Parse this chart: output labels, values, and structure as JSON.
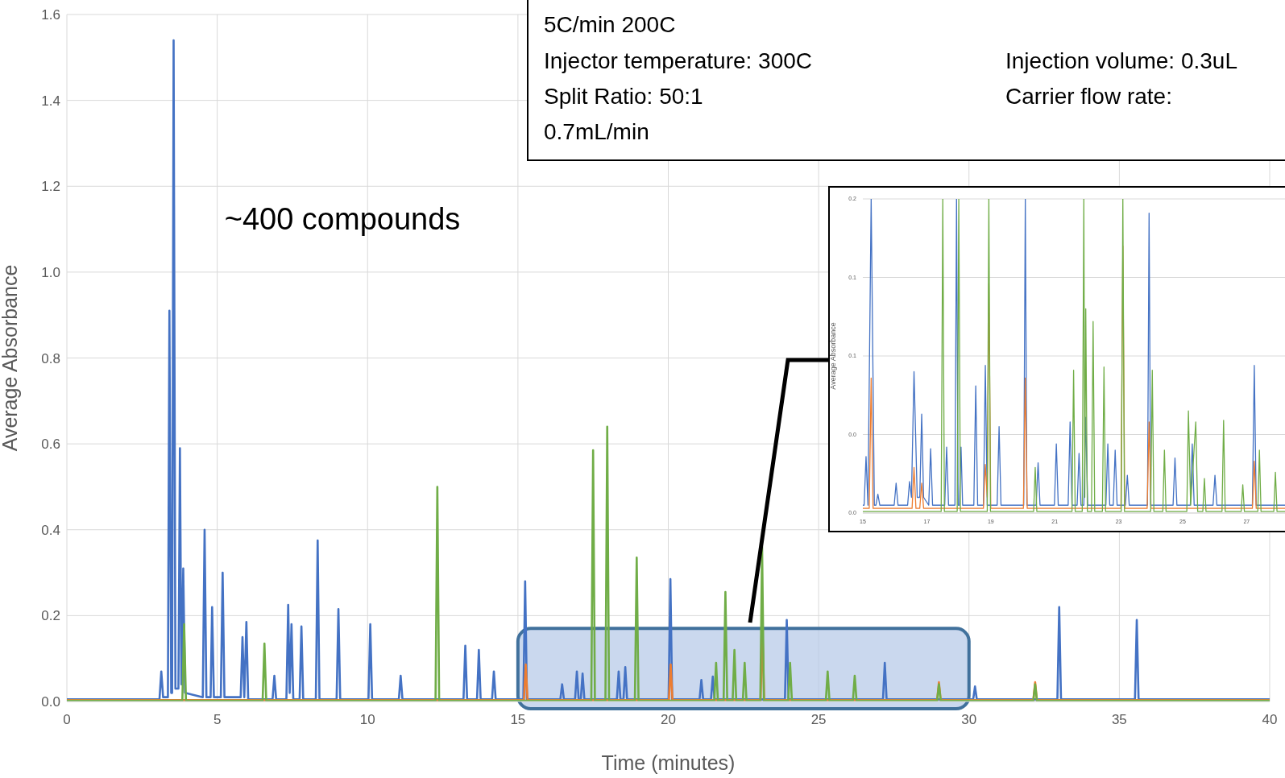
{
  "chart_data": [
    {
      "type": "line",
      "xlabel": "Time (minutes)",
      "ylabel": "Average Absorbance",
      "xlim": [
        0,
        40
      ],
      "ylim": [
        0,
        1.6
      ],
      "xticks": [
        0,
        5,
        10,
        15,
        20,
        25,
        30,
        35,
        40
      ],
      "yticks": [
        {
          "value": 0,
          "label": "0.0"
        },
        0.2,
        0.4,
        0.6,
        0.8,
        {
          "value": 1,
          "label": "1.0"
        },
        1.2,
        1.4,
        1.6
      ],
      "grid": true,
      "annotations": [
        "~400 compounds",
        "5C/min 200C",
        "Injector temperature: 300C",
        "Injection volume: 0.3uL",
        "Split Ratio: 50:1",
        "Carrier flow rate:",
        "0.7mL/min"
      ],
      "bands": [
        {
          "axis": "x",
          "from": 15,
          "to": 30,
          "color": "#b4c7e7"
        }
      ],
      "series": [
        {
          "color": "#4472c4",
          "x": [
            0,
            3.08,
            3.14,
            3.2,
            3.36,
            3.41,
            3.47,
            3.5,
            3.55,
            3.61,
            3.71,
            3.76,
            3.81,
            3.87,
            3.93,
            4.52,
            4.58,
            4.64,
            4.78,
            4.83,
            4.89,
            5.12,
            5.18,
            5.24,
            5.78,
            5.84,
            5.9,
            5.97,
            6.03,
            6.84,
            6.9,
            6.96,
            7.3,
            7.36,
            7.41,
            7.47,
            7.53,
            7.74,
            7.8,
            7.86,
            8.28,
            8.34,
            8.4,
            8.97,
            9.03,
            9.09,
            10.03,
            10.09,
            10.15,
            11.04,
            11.1,
            11.16,
            13.19,
            13.25,
            13.31,
            13.64,
            13.7,
            13.76,
            14.14,
            14.2,
            14.26,
            15.18,
            15.24,
            15.3,
            16.41,
            16.47,
            16.53,
            16.9,
            16.96,
            17.02,
            17.09,
            17.15,
            17.21,
            18.29,
            18.35,
            18.41,
            18.51,
            18.57,
            18.63,
            20.01,
            20.07,
            20.13,
            21.04,
            21.1,
            21.16,
            21.42,
            21.48,
            21.54,
            23.88,
            23.94,
            24,
            27.14,
            27.2,
            27.26,
            30.14,
            30.2,
            30.26,
            32.94,
            33,
            33.06,
            35.52,
            35.58,
            35.64,
            40
          ],
          "values": [
            0.005,
            0.005,
            0.07,
            0.01,
            0.01,
            0.91,
            0.02,
            0.02,
            1.54,
            0.03,
            0.03,
            0.59,
            0.04,
            0.31,
            0.02,
            0.01,
            0.4,
            0.01,
            0.01,
            0.22,
            0.01,
            0.01,
            0.3,
            0.01,
            0.01,
            0.15,
            0.01,
            0.185,
            0.005,
            0.005,
            0.06,
            0.005,
            0.005,
            0.225,
            0.02,
            0.18,
            0.005,
            0.005,
            0.175,
            0.005,
            0.005,
            0.375,
            0.005,
            0.005,
            0.215,
            0.005,
            0.005,
            0.18,
            0.005,
            0.005,
            0.06,
            0.005,
            0.005,
            0.13,
            0.005,
            0.005,
            0.12,
            0.005,
            0.005,
            0.07,
            0.005,
            0.005,
            0.28,
            0.005,
            0.005,
            0.04,
            0.005,
            0.005,
            0.07,
            0.005,
            0.005,
            0.065,
            0.005,
            0.005,
            0.07,
            0.005,
            0.005,
            0.08,
            0.005,
            0.005,
            0.285,
            0.005,
            0.005,
            0.05,
            0.005,
            0.005,
            0.058,
            0.005,
            0.005,
            0.19,
            0.005,
            0.005,
            0.09,
            0.005,
            0.005,
            0.035,
            0.005,
            0.005,
            0.22,
            0.005,
            0.005,
            0.19,
            0.005,
            0.005
          ]
        },
        {
          "color": "#ed7d31",
          "x": [
            0,
            15.2,
            15.26,
            15.32,
            20.02,
            20.08,
            20.14,
            23.07,
            23.13,
            23.19,
            28.94,
            29,
            29.06,
            32.14,
            32.2,
            32.26,
            40
          ],
          "values": [
            0.003,
            0.003,
            0.086,
            0.003,
            0.003,
            0.086,
            0.003,
            0.003,
            0.17,
            0.003,
            0.003,
            0.045,
            0.003,
            0.003,
            0.045,
            0.003,
            0.003
          ]
        },
        {
          "color": "#70ad47",
          "x": [
            0,
            3.84,
            3.9,
            3.96,
            6.51,
            6.57,
            6.63,
            12.26,
            12.32,
            12.38,
            17.44,
            17.5,
            17.56,
            17.91,
            17.97,
            18.03,
            18.89,
            18.95,
            19.01,
            21.53,
            21.59,
            21.65,
            21.84,
            21.9,
            21.96,
            22.14,
            22.2,
            22.26,
            22.48,
            22.54,
            22.6,
            23.06,
            23.12,
            23.18,
            23.99,
            24.05,
            24.11,
            25.24,
            25.3,
            25.36,
            26.14,
            26.2,
            26.26,
            28.94,
            29,
            29.06,
            32.14,
            32.2,
            32.26,
            40
          ],
          "values": [
            0.002,
            0.002,
            0.18,
            0.002,
            0.002,
            0.135,
            0.002,
            0.002,
            0.5,
            0.002,
            0.002,
            0.585,
            0.002,
            0.002,
            0.64,
            0.002,
            0.002,
            0.335,
            0.002,
            0.002,
            0.09,
            0.002,
            0.002,
            0.255,
            0.002,
            0.002,
            0.12,
            0.002,
            0.002,
            0.09,
            0.002,
            0.002,
            0.36,
            0.002,
            0.002,
            0.09,
            0.002,
            0.002,
            0.07,
            0.002,
            0.002,
            0.06,
            0.002,
            0.002,
            0.04,
            0.002,
            0.002,
            0.04,
            0.002,
            0.002
          ]
        }
      ]
    },
    {
      "type": "line",
      "ylabel": "Average Absorbance",
      "xlim": [
        15,
        28.2
      ],
      "ylim": [
        0,
        0.2
      ],
      "xticks": [
        15,
        17,
        19,
        21,
        23,
        25,
        27
      ],
      "yticks": [
        {
          "value": 0,
          "label": "0.0"
        },
        {
          "value": 0.05,
          "label": "0.0"
        },
        {
          "value": 0.1,
          "label": "0.1"
        },
        {
          "value": 0.15,
          "label": "0.1"
        },
        {
          "value": 0.2,
          "label": "0.2"
        }
      ],
      "grid": "y",
      "series": [
        {
          "color": "#4472c4",
          "x": [
            15,
            15.04,
            15.1,
            15.16,
            15.26,
            15.36,
            15.41,
            15.47,
            15.53,
            15.98,
            16.04,
            16.1,
            16.4,
            16.46,
            16.52,
            16.6,
            16.7,
            16.78,
            16.84,
            16.9,
            17.06,
            17.12,
            17.18,
            17.56,
            17.62,
            17.68,
            17.88,
            17.93,
            17.98,
            18.02,
            18.07,
            18.12,
            18.47,
            18.53,
            18.59,
            18.77,
            18.83,
            18.89,
            19.2,
            19.26,
            19.32,
            20.03,
            20.08,
            20.13,
            20.42,
            20.48,
            20.54,
            20.99,
            21.05,
            21.11,
            21.42,
            21.48,
            21.54,
            21.7,
            21.76,
            21.82,
            21.91,
            21.97,
            22.03,
            22.6,
            22.66,
            22.72,
            22.83,
            22.89,
            22.95,
            23.21,
            23.27,
            23.33,
            23.9,
            23.95,
            24,
            24.7,
            24.76,
            24.82,
            25.24,
            25.3,
            25.36,
            25.95,
            26.01,
            26.07,
            27.18,
            27.24,
            27.3,
            28.2
          ],
          "values": [
            0.005,
            0.005,
            0.036,
            0.005,
            0.2,
            0.005,
            0.005,
            0.012,
            0.005,
            0.005,
            0.019,
            0.005,
            0.005,
            0.02,
            0.01,
            0.09,
            0.01,
            0.01,
            0.063,
            0.01,
            0.005,
            0.041,
            0.005,
            0.005,
            0.042,
            0.005,
            0.005,
            0.2,
            0.005,
            0.005,
            0.042,
            0.005,
            0.005,
            0.081,
            0.005,
            0.005,
            0.094,
            0.005,
            0.005,
            0.055,
            0.005,
            0.005,
            0.2,
            0.005,
            0.005,
            0.032,
            0.005,
            0.005,
            0.044,
            0.005,
            0.005,
            0.058,
            0.005,
            0.005,
            0.038,
            0.005,
            0.005,
            0.061,
            0.005,
            0.005,
            0.044,
            0.005,
            0.005,
            0.04,
            0.005,
            0.005,
            0.024,
            0.005,
            0.005,
            0.191,
            0.005,
            0.005,
            0.035,
            0.005,
            0.005,
            0.044,
            0.005,
            0.005,
            0.024,
            0.005,
            0.005,
            0.094,
            0.005,
            0.005
          ]
        },
        {
          "color": "#ed7d31",
          "x": [
            15,
            15.2,
            15.26,
            15.32,
            16.54,
            16.6,
            16.66,
            16.78,
            16.84,
            16.9,
            18.77,
            18.83,
            18.89,
            18.94,
            19,
            20.02,
            20.08,
            20.14,
            23.07,
            23.13,
            23.19,
            23.89,
            23.95,
            24.01,
            27.18,
            27.24,
            27.3,
            28.2
          ],
          "values": [
            0.003,
            0.003,
            0.086,
            0.003,
            0.003,
            0.029,
            0.003,
            0.003,
            0.019,
            0.003,
            0.003,
            0.031,
            0.01,
            0.146,
            0.003,
            0.003,
            0.086,
            0.003,
            0.003,
            0.17,
            0.003,
            0.003,
            0.058,
            0.003,
            0.003,
            0.033,
            0.003,
            0.003
          ]
        },
        {
          "color": "#70ad47",
          "x": [
            15,
            17.45,
            17.5,
            17.55,
            17.95,
            18,
            18.05,
            18.89,
            18.94,
            18.99,
            20.34,
            20.39,
            20.44,
            21.54,
            21.59,
            21.64,
            21.86,
            21.91,
            21.94,
            21.97,
            22.02,
            22.15,
            22.2,
            22.25,
            22.49,
            22.54,
            22.59,
            23.08,
            23.13,
            23.18,
            24,
            24.05,
            24.1,
            24.38,
            24.43,
            24.48,
            25.13,
            25.18,
            25.25,
            25.41,
            25.47,
            25.63,
            25.68,
            25.73,
            26.23,
            26.28,
            26.33,
            26.83,
            26.88,
            26.93,
            27.35,
            27.4,
            27.45,
            27.85,
            27.9,
            27.95,
            28.2
          ],
          "values": [
            0.001,
            0.001,
            0.2,
            0.001,
            0.001,
            0.2,
            0.001,
            0.001,
            0.2,
            0.001,
            0.001,
            0.029,
            0.001,
            0.001,
            0.091,
            0.001,
            0.001,
            0.2,
            0.01,
            0.13,
            0.001,
            0.001,
            0.122,
            0.001,
            0.001,
            0.093,
            0.001,
            0.001,
            0.2,
            0.001,
            0.001,
            0.091,
            0.001,
            0.001,
            0.04,
            0.001,
            0.001,
            0.065,
            0.005,
            0.058,
            0.001,
            0.001,
            0.022,
            0.001,
            0.001,
            0.059,
            0.001,
            0.001,
            0.018,
            0.001,
            0.001,
            0.04,
            0.001,
            0.001,
            0.026,
            0.001,
            0.001
          ]
        }
      ]
    }
  ]
}
